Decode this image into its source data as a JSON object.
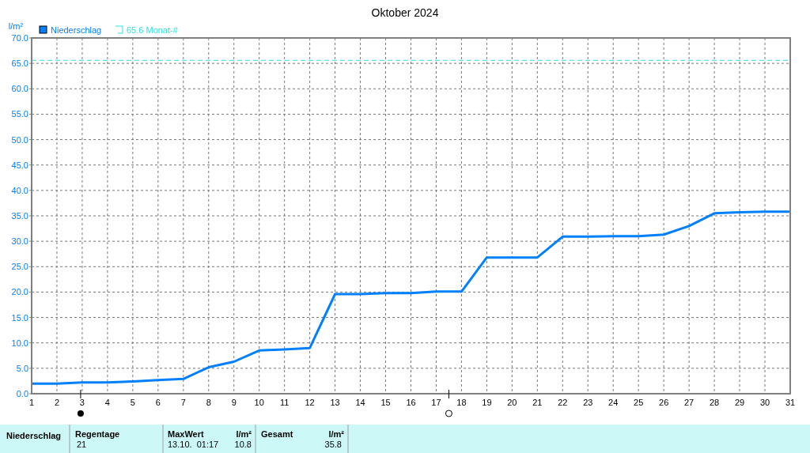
{
  "chart_data": {
    "type": "line",
    "title": "Oktober 2024",
    "ylabel": "l/m²",
    "x": [
      1,
      2,
      3,
      4,
      5,
      6,
      7,
      8,
      9,
      10,
      11,
      12,
      13,
      14,
      15,
      16,
      17,
      18,
      19,
      20,
      21,
      22,
      23,
      24,
      25,
      26,
      27,
      28,
      29,
      30,
      31
    ],
    "series": [
      {
        "name": "Niederschlag",
        "color": "#0080ff",
        "values": [
          2.0,
          2.0,
          2.2,
          2.2,
          2.4,
          2.7,
          2.9,
          5.2,
          6.3,
          8.5,
          8.7,
          9.0,
          19.6,
          19.6,
          19.8,
          19.8,
          20.1,
          20.1,
          26.8,
          26.8,
          26.8,
          30.9,
          30.9,
          31.0,
          31.0,
          31.3,
          33.0,
          35.5,
          35.7,
          35.8,
          35.8
        ]
      }
    ],
    "xlim": [
      1,
      31
    ],
    "xticks": [
      1,
      2,
      3,
      4,
      5,
      6,
      7,
      8,
      9,
      10,
      11,
      12,
      13,
      14,
      15,
      16,
      17,
      18,
      19,
      20,
      21,
      22,
      23,
      24,
      25,
      26,
      27,
      28,
      29,
      30,
      31
    ],
    "ylim": [
      0,
      70
    ],
    "yticks": [
      {
        "value": 0,
        "label": "0.0"
      },
      {
        "value": 5,
        "label": "5.0"
      },
      {
        "value": 10,
        "label": "10.0"
      },
      {
        "value": 15,
        "label": "15.0"
      },
      {
        "value": 20,
        "label": "20.0"
      },
      {
        "value": 25,
        "label": "25.0"
      },
      {
        "value": 30,
        "label": "30.0"
      },
      {
        "value": 35,
        "label": "35.0"
      },
      {
        "value": 40,
        "label": "40.0"
      },
      {
        "value": 45,
        "label": "45.0"
      },
      {
        "value": 50,
        "label": "50.0"
      },
      {
        "value": 55,
        "label": "55.0"
      },
      {
        "value": 60,
        "label": "60.0"
      },
      {
        "value": 65,
        "label": "65.0"
      },
      {
        "value": 70,
        "label": "70.0"
      }
    ],
    "ref_lines": [
      {
        "axis": "y",
        "value": 65.6,
        "label": "65.6 Monat-#",
        "color": "#30e0e0",
        "line_style": "dashed"
      }
    ],
    "grid": true,
    "legend": "top left",
    "marker": "none",
    "line_style": "solid",
    "annotations": [
      "Niederschlag",
      "Regentage",
      "21",
      "MaxWert",
      "l/m²",
      "13.10.  01:17",
      "10.8",
      "Gesamt",
      "l/m²",
      "35.8"
    ]
  }
}
